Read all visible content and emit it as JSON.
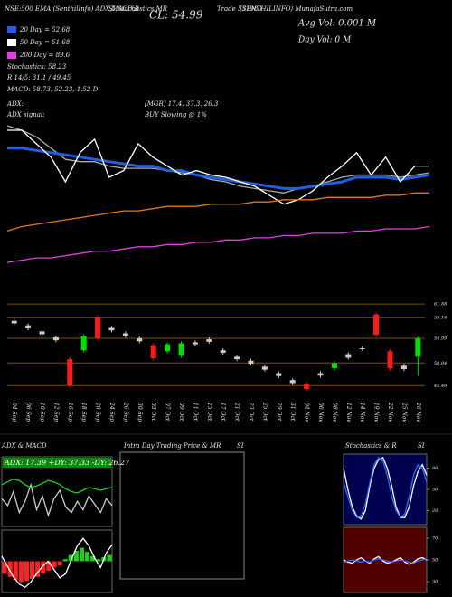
{
  "chart_data": [
    {
      "type": "line",
      "annotations": [
        "NSE:500 EMA (SenthilInfo) ADX,MACD,B",
        "SI,Stochastics,MR",
        "CL: 54.99",
        "Trade 531980",
        "(SENTHILINFO) MunafaSutra.com",
        "Avg Vol: 0.001 M",
        "Day Vol: 0  M",
        "20 Day = 52.68",
        "50 Day = 51.68",
        "200 Day = 89.6",
        "Stochastics: 58.23",
        "R  14/5: 31.1 / 49.45",
        "MACD: 58.73, 52.23, 1.52 D",
        "ADX:",
        "[MGR] 17.4, 37.3, 26.3",
        "ADX  signal:",
        "BUY Slowing @ 1%"
      ],
      "ylim": [
        -5,
        100
      ],
      "series": [
        {
          "color": "#aaaaaa",
          "values": [
            60,
            58,
            55,
            50,
            45,
            44,
            44,
            42,
            41,
            41,
            41,
            40,
            39,
            38,
            36,
            35,
            33,
            32,
            31,
            30,
            32,
            33,
            35,
            37,
            38,
            38,
            38,
            37,
            38,
            39
          ]
        },
        {
          "color": "#1f5fe0",
          "values": [
            50,
            50,
            49,
            48,
            47,
            46,
            45,
            44,
            43,
            42,
            42,
            40,
            40,
            38,
            37,
            36,
            35,
            34,
            33,
            32,
            32,
            33,
            34,
            35,
            37,
            37,
            37,
            36,
            37,
            38
          ]
        },
        {
          "color": "#ffffff",
          "values": [
            58,
            58,
            52,
            46,
            35,
            48,
            54,
            37,
            40,
            52,
            46,
            42,
            38,
            40,
            38,
            37,
            35,
            33,
            29,
            25,
            27,
            31,
            37,
            42,
            48,
            38,
            46,
            35,
            42,
            42
          ]
        },
        {
          "color": "#e07a10",
          "values": [
            13,
            15,
            16,
            17,
            18,
            19,
            20,
            21,
            22,
            22,
            23,
            24,
            24,
            24,
            25,
            25,
            25,
            26,
            26,
            27,
            27,
            27,
            28,
            28,
            28,
            28,
            29,
            29,
            30,
            30
          ]
        },
        {
          "color": "#e040e0",
          "values": [
            -1,
            0,
            1,
            1,
            2,
            3,
            4,
            4,
            5,
            6,
            6,
            7,
            7,
            8,
            8,
            9,
            9,
            10,
            10,
            11,
            11,
            12,
            12,
            12,
            13,
            13,
            14,
            14,
            14,
            15
          ]
        }
      ]
    },
    {
      "type": "candlestick",
      "categories": [
        "04 Sep",
        "06 Sep",
        "10 Sep",
        "12 Sep",
        "16 Sep",
        "18 Sep",
        "20 Sep",
        "24 Sep",
        "26 Sep",
        "30 Sep",
        "03 Oct",
        "07 Oct",
        "09 Oct",
        "11 Oct",
        "15 Oct",
        "17 Oct",
        "21 Oct",
        "23 Oct",
        "25 Oct",
        "29 Oct",
        "31 Oct",
        "04 Nov",
        "06 Nov",
        "08 Nov",
        "12 Nov",
        "14 Nov",
        "19 Nov",
        "22 Nov",
        "25 Nov",
        "26 Nov"
      ],
      "open": [
        58.5,
        57.6,
        56.4,
        55.2,
        50.8,
        52.6,
        59.2,
        57.1,
        56.0,
        55.0,
        53.6,
        52.4,
        51.5,
        53.8,
        54.8,
        52.6,
        51.3,
        50.5,
        49.3,
        48.0,
        46.6,
        45.9,
        47.5,
        49.0,
        51.1,
        53.0,
        59.8,
        52.4,
        49.5,
        51.3
      ],
      "high": [
        59.0,
        58.0,
        56.8,
        55.6,
        51.2,
        55.8,
        59.6,
        57.5,
        56.4,
        55.4,
        54.0,
        54.2,
        54.4,
        54.6,
        55.2,
        53.0,
        51.7,
        50.9,
        49.7,
        48.4,
        47.0,
        46.3,
        48.4,
        50.4,
        52.2,
        53.4,
        60.2,
        52.8,
        49.9,
        55.3
      ],
      "low": [
        57.6,
        56.6,
        55.4,
        54.2,
        45.1,
        52.2,
        54.7,
        56.2,
        55.1,
        54.0,
        50.6,
        52.0,
        51.1,
        53.4,
        53.9,
        51.7,
        50.4,
        49.5,
        48.3,
        47.0,
        45.6,
        44.4,
        47.1,
        48.6,
        50.7,
        52.5,
        55.3,
        48.6,
        48.4,
        47.5
      ],
      "close": [
        58.0,
        57.0,
        55.8,
        54.6,
        45.5,
        55.4,
        55.1,
        56.6,
        55.5,
        54.4,
        51.0,
        53.8,
        54.0,
        54.2,
        54.3,
        52.1,
        50.8,
        49.9,
        48.7,
        47.4,
        46.0,
        44.8,
        48.0,
        50.0,
        51.8,
        52.9,
        55.7,
        49.0,
        48.8,
        54.99
      ],
      "up_color": "#00dd00",
      "down_color": "#ff1a1a",
      "grid_color": "#7a5200",
      "ylim": [
        43,
        63
      ],
      "yticks": [
        45.49,
        50.04,
        54.99,
        59.14,
        61.88
      ]
    },
    {
      "type": "line",
      "title": "ADX  & MACD",
      "subtitle": "ADX: 17.39 +DY: 37.33 -DY: 26.27",
      "background": "#000000",
      "ylim": [
        0,
        50
      ],
      "series": [
        {
          "color": "#cccccc",
          "values": [
            20,
            15,
            25,
            10,
            18,
            30,
            12,
            22,
            8,
            20,
            26,
            14,
            10,
            18,
            12,
            22,
            16,
            10,
            20,
            15
          ]
        },
        {
          "color": "#22cc22",
          "values": [
            30,
            32,
            34,
            33,
            30,
            28,
            29,
            31,
            33,
            32,
            30,
            27,
            25,
            24,
            26,
            28,
            27,
            26,
            27,
            28
          ]
        }
      ]
    },
    {
      "type": "bar",
      "background": "#000000",
      "up_color": "#22cc22",
      "down_color": "#ff2222",
      "ylim": [
        -3,
        3
      ],
      "values": [
        -1.2,
        -1.5,
        -1.8,
        -2,
        -1.9,
        -1.7,
        -1.5,
        -1.2,
        -0.9,
        -0.6,
        -0.4,
        0.2,
        0.6,
        1.0,
        1.3,
        0.9,
        0.5,
        0.2,
        0.4,
        0.6
      ],
      "series": [
        {
          "color": "#ffffff",
          "values": [
            0.5,
            -0.5,
            -1.5,
            -2.2,
            -2.5,
            -2,
            -1.2,
            -0.5,
            0,
            -0.8,
            -1.6,
            -1.2,
            0.2,
            1.5,
            2.2,
            1.5,
            0.3,
            -0.6,
            0.8,
            1.6
          ]
        }
      ]
    },
    {
      "type": "box",
      "title": "Intra Day Trading Price  & MR",
      "subtitle": "SI"
    },
    {
      "type": "line",
      "title": "Stochastics & R",
      "subtitle": "SI",
      "background": "#000050",
      "ylim": [
        0,
        100
      ],
      "yticks": [
        20,
        50,
        80
      ],
      "series": [
        {
          "color": "#ffffff",
          "values": [
            80,
            50,
            25,
            12,
            8,
            20,
            55,
            80,
            92,
            95,
            80,
            55,
            25,
            10,
            10,
            25,
            55,
            75,
            85,
            70
          ]
        },
        {
          "color": "#2a6cff",
          "values": [
            60,
            40,
            20,
            10,
            12,
            30,
            60,
            85,
            95,
            90,
            70,
            40,
            20,
            10,
            15,
            40,
            70,
            85,
            80,
            60
          ]
        }
      ]
    },
    {
      "type": "line",
      "background": "#500000",
      "ylim": [
        20,
        80
      ],
      "yticks": [
        30,
        50,
        70
      ],
      "series": [
        {
          "color": "#ffffff",
          "values": [
            50,
            48,
            47,
            50,
            52,
            49,
            47,
            51,
            53,
            49,
            47,
            48,
            50,
            52,
            48,
            46,
            48,
            51,
            52,
            50
          ]
        },
        {
          "color": "#2a6cff",
          "values": [
            48,
            49,
            50,
            49,
            48,
            49,
            48,
            50,
            51,
            50,
            49,
            48,
            49,
            50,
            49,
            48,
            47,
            49,
            50,
            51
          ]
        }
      ]
    }
  ]
}
